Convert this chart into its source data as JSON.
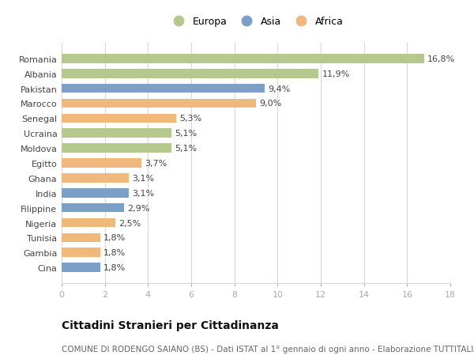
{
  "categories": [
    "Romania",
    "Albania",
    "Pakistan",
    "Marocco",
    "Senegal",
    "Ucraina",
    "Moldova",
    "Egitto",
    "Ghana",
    "India",
    "Filippine",
    "Nigeria",
    "Tunisia",
    "Gambia",
    "Cina"
  ],
  "values": [
    16.8,
    11.9,
    9.4,
    9.0,
    5.3,
    5.1,
    5.1,
    3.7,
    3.1,
    3.1,
    2.9,
    2.5,
    1.8,
    1.8,
    1.8
  ],
  "labels": [
    "16,8%",
    "11,9%",
    "9,4%",
    "9,0%",
    "5,3%",
    "5,1%",
    "5,1%",
    "3,7%",
    "3,1%",
    "3,1%",
    "2,9%",
    "2,5%",
    "1,8%",
    "1,8%",
    "1,8%"
  ],
  "continents": [
    "Europa",
    "Europa",
    "Asia",
    "Africa",
    "Africa",
    "Europa",
    "Europa",
    "Africa",
    "Africa",
    "Asia",
    "Asia",
    "Africa",
    "Africa",
    "Africa",
    "Asia"
  ],
  "colors": {
    "Europa": "#b5c98e",
    "Asia": "#7b9fc7",
    "Africa": "#f0b87a"
  },
  "legend_labels": [
    "Europa",
    "Asia",
    "Africa"
  ],
  "title": "Cittadini Stranieri per Cittadinanza",
  "subtitle": "COMUNE DI RODENGO SAIANO (BS) - Dati ISTAT al 1° gennaio di ogni anno - Elaborazione TUTTITALIA.IT",
  "xlim": [
    0,
    18
  ],
  "xticks": [
    0,
    2,
    4,
    6,
    8,
    10,
    12,
    14,
    16,
    18
  ],
  "background_color": "#ffffff",
  "grid_color": "#d8d8d8",
  "bar_height": 0.62,
  "title_fontsize": 10,
  "subtitle_fontsize": 7.5,
  "label_fontsize": 8,
  "tick_fontsize": 8,
  "legend_fontsize": 9
}
